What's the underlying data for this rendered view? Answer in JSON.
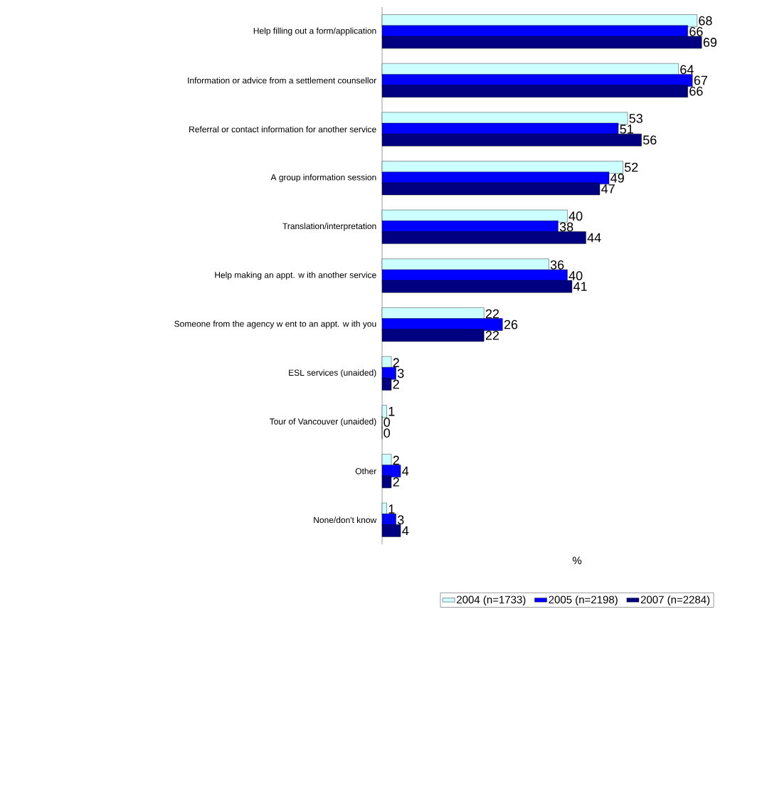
{
  "chart_data": {
    "type": "bar",
    "orientation": "horizontal",
    "xlabel": "%",
    "data_labels": true,
    "legend": "bottom",
    "categories": [
      "Help filling out a form/application",
      "Information or advice from a settlement counsellor",
      "Referral or contact information for another service",
      "A group information session",
      "Translation/interpretation",
      "Help making an appt. w ith another service",
      "Someone from the agency w ent to an appt. w ith you",
      "ESL services (unaided)",
      "Tour of Vancouver (unaided)",
      "Other",
      "None/don't know"
    ],
    "series": [
      {
        "name": "2004 (n=1733)",
        "color": "#ccffff",
        "values": [
          68,
          64,
          53,
          52,
          40,
          36,
          22,
          2,
          1,
          2,
          1
        ]
      },
      {
        "name": "2005 (n=2198)",
        "color": "#0000ff",
        "values": [
          66,
          67,
          51,
          49,
          38,
          40,
          26,
          3,
          0,
          4,
          3
        ]
      },
      {
        "name": "2007 (n=2284)",
        "color": "#000080",
        "values": [
          69,
          66,
          56,
          47,
          44,
          41,
          22,
          2,
          0,
          2,
          4
        ]
      }
    ]
  }
}
